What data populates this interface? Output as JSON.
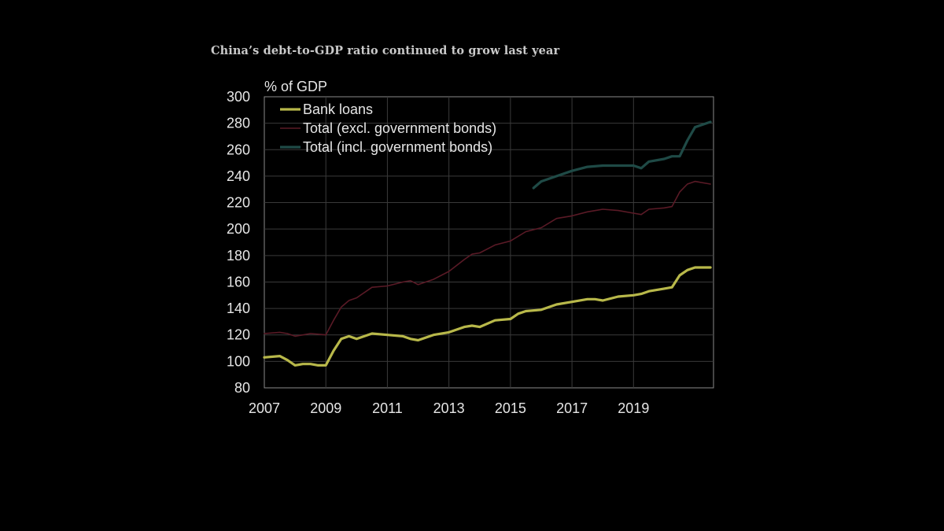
{
  "title": "China’s debt-to-GDP ratio continued to grow last year",
  "chart_data": {
    "type": "line",
    "ylabel": "% of GDP",
    "ylim": [
      80,
      300
    ],
    "yticks": [
      80,
      100,
      120,
      140,
      160,
      180,
      200,
      220,
      240,
      260,
      280,
      300
    ],
    "xlim": [
      2007,
      2021.6
    ],
    "xticks": [
      2007,
      2009,
      2011,
      2013,
      2015,
      2017,
      2019
    ],
    "grid": true,
    "legend_position": "top-left",
    "series": [
      {
        "name": "Bank loans",
        "color": "#b8b84a",
        "x": [
          2007.0,
          2007.5,
          2007.75,
          2008.0,
          2008.25,
          2008.5,
          2008.75,
          2009.0,
          2009.25,
          2009.5,
          2009.75,
          2010.0,
          2010.5,
          2011.0,
          2011.5,
          2011.75,
          2012.0,
          2012.5,
          2013.0,
          2013.5,
          2013.75,
          2014.0,
          2014.5,
          2015.0,
          2015.25,
          2015.5,
          2016.0,
          2016.5,
          2017.0,
          2017.5,
          2017.75,
          2018.0,
          2018.5,
          2019.0,
          2019.25,
          2019.5,
          2020.0,
          2020.25,
          2020.5,
          2020.75,
          2021.0,
          2021.5
        ],
        "values": [
          103,
          104,
          101,
          97,
          98,
          98,
          97,
          97,
          108,
          117,
          119,
          117,
          121,
          120,
          119,
          117,
          116,
          120,
          122,
          126,
          127,
          126,
          131,
          132,
          136,
          138,
          139,
          143,
          145,
          147,
          147,
          146,
          149,
          150,
          151,
          153,
          155,
          156,
          165,
          169,
          171,
          171
        ]
      },
      {
        "name": "Total (excl. government bonds)",
        "color": "#5a1a26",
        "x": [
          2007.0,
          2007.5,
          2007.75,
          2008.0,
          2008.5,
          2009.0,
          2009.25,
          2009.5,
          2009.75,
          2010.0,
          2010.5,
          2011.0,
          2011.5,
          2011.75,
          2012.0,
          2012.5,
          2013.0,
          2013.5,
          2013.75,
          2014.0,
          2014.5,
          2015.0,
          2015.5,
          2016.0,
          2016.5,
          2017.0,
          2017.5,
          2018.0,
          2018.5,
          2019.0,
          2019.25,
          2019.5,
          2020.0,
          2020.25,
          2020.5,
          2020.75,
          2021.0,
          2021.5
        ],
        "values": [
          121,
          122,
          121,
          119,
          121,
          120,
          131,
          141,
          146,
          148,
          156,
          157,
          160,
          161,
          158,
          162,
          168,
          177,
          181,
          182,
          188,
          191,
          198,
          201,
          208,
          210,
          213,
          215,
          214,
          212,
          211,
          215,
          216,
          217,
          228,
          234,
          236,
          234
        ]
      },
      {
        "name": "Total (incl. government bonds)",
        "color": "#1f4a46",
        "x": [
          2015.75,
          2016.0,
          2016.5,
          2017.0,
          2017.5,
          2018.0,
          2018.5,
          2019.0,
          2019.25,
          2019.5,
          2020.0,
          2020.25,
          2020.5,
          2020.75,
          2021.0,
          2021.5
        ],
        "values": [
          231,
          236,
          240,
          244,
          247,
          248,
          248,
          248,
          246,
          251,
          253,
          255,
          255,
          267,
          277,
          281
        ]
      }
    ]
  }
}
